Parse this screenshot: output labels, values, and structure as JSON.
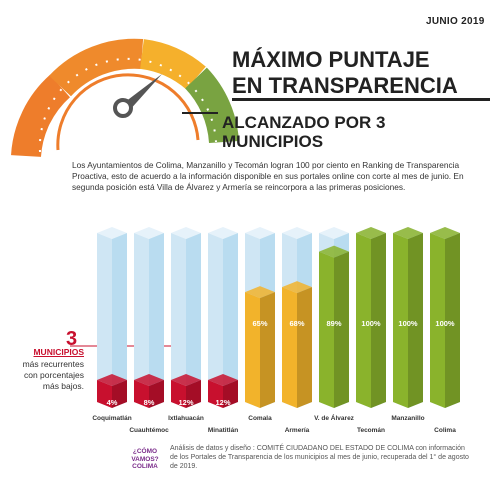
{
  "header": {
    "date": "JUNIO 2019",
    "title_line1": "MÁXIMO PUNTAJE",
    "title_line2": "EN TRANSPARENCIA",
    "subtitle_line1": "ALCANZADO POR 3",
    "subtitle_line2": "MUNICIPIOS"
  },
  "intro": "Los Ayuntamientos de Colima, Manzanillo y Tecomán logran 100 por ciento en  Ranking de Transparencia Proactiva, esto de acuerdo a la información disponible en sus portales online con corte al mes de junio. En segunda posición está Villa de Álvarez y Armería se reincorpora a las primeras posiciones.",
  "legend": {
    "number": "3",
    "label": "MUNICIPIOS",
    "line1": "más recurrentes",
    "line2": "con porcentajes",
    "line3": "más bajos."
  },
  "colors": {
    "red": "#c8102e",
    "yellow": "#f2b32b",
    "green": "#8ab32c",
    "empty": "#cfe6f4",
    "gauge_orange": "#ee7d2b",
    "gauge_yellow": "#f5b02c",
    "gauge_green": "#79a341"
  },
  "chart_data": {
    "type": "bar",
    "categories": [
      "Coquimatlán",
      "Cuauhtémoc",
      "Ixtlahuacán",
      "Minatitlán",
      "Comala",
      "Armería",
      "V. de Álvarez",
      "Tecomán",
      "Manzanillo",
      "Colima"
    ],
    "values": [
      4,
      8,
      12,
      12,
      65,
      68,
      89,
      100,
      100,
      100
    ],
    "value_labels": [
      "4%",
      "8%",
      "12%",
      "12%",
      "65%",
      "68%",
      "89%",
      "100%",
      "100%",
      "100%"
    ],
    "ylim": [
      0,
      100
    ],
    "legend": "left"
  },
  "credit": "Análisis de datos y diseño : COMITÉ CIUDADANO DEL ESTADO DE COLIMA con información de los Portales de Transparencia de los municipios al mes de junio, recuperada del 1° de agosto de 2019.",
  "logo": {
    "line1": "¿CÓMO",
    "line2": "VAMOS?",
    "line3": "COLIMA"
  }
}
